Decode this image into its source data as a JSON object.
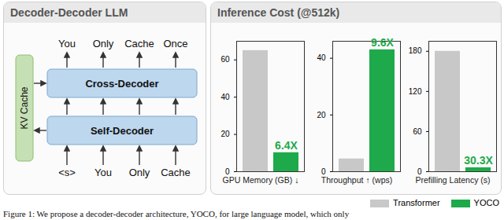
{
  "diagram": {
    "title": "Decoder-Decoder LLM",
    "kv_cache": "KV Cache",
    "upper_block": "Cross-Decoder",
    "lower_block": "Self-Decoder",
    "outputs": [
      "You",
      "Only",
      "Cache",
      "Once"
    ],
    "inputs": [
      "<s>",
      "You",
      "Only",
      "Cache"
    ]
  },
  "panel_title": "Inference Cost (@512k)",
  "chart_data": [
    {
      "type": "bar",
      "xlabel": "GPU Memory (GB) ↓",
      "ylim": [
        0,
        70
      ],
      "yticks": [
        0,
        20,
        40,
        60
      ],
      "legend": "bottom right",
      "series": [
        {
          "name": "Transformer",
          "color": "#c8c8c8",
          "values": [
            65
          ]
        },
        {
          "name": "YOCO",
          "color": "#1eaa4a",
          "values": [
            10.2
          ]
        }
      ],
      "annotations": [
        {
          "series": "YOCO",
          "text": "6.4X"
        }
      ]
    },
    {
      "type": "bar",
      "xlabel": "Throughput ↑ (wps)",
      "ylim": [
        0,
        46
      ],
      "yticks": [
        0,
        20,
        40
      ],
      "series": [
        {
          "name": "Transformer",
          "color": "#c8c8c8",
          "values": [
            4.5
          ]
        },
        {
          "name": "YOCO",
          "color": "#1eaa4a",
          "values": [
            43
          ]
        }
      ],
      "annotations": [
        {
          "series": "YOCO",
          "text": "9.6X"
        }
      ]
    },
    {
      "type": "bar",
      "xlabel": "Prefilling Latency (s)",
      "ylim": [
        0,
        195
      ],
      "yticks": [
        0,
        60,
        120,
        180
      ],
      "series": [
        {
          "name": "Transformer",
          "color": "#c8c8c8",
          "values": [
            180
          ]
        },
        {
          "name": "YOCO",
          "color": "#1eaa4a",
          "values": [
            5.9
          ]
        }
      ],
      "annotations": [
        {
          "series": "YOCO",
          "text": "30.3X"
        }
      ]
    }
  ],
  "caption": "Figure 1: We propose a decoder-decoder architecture, YOCO, for large language model, which only"
}
